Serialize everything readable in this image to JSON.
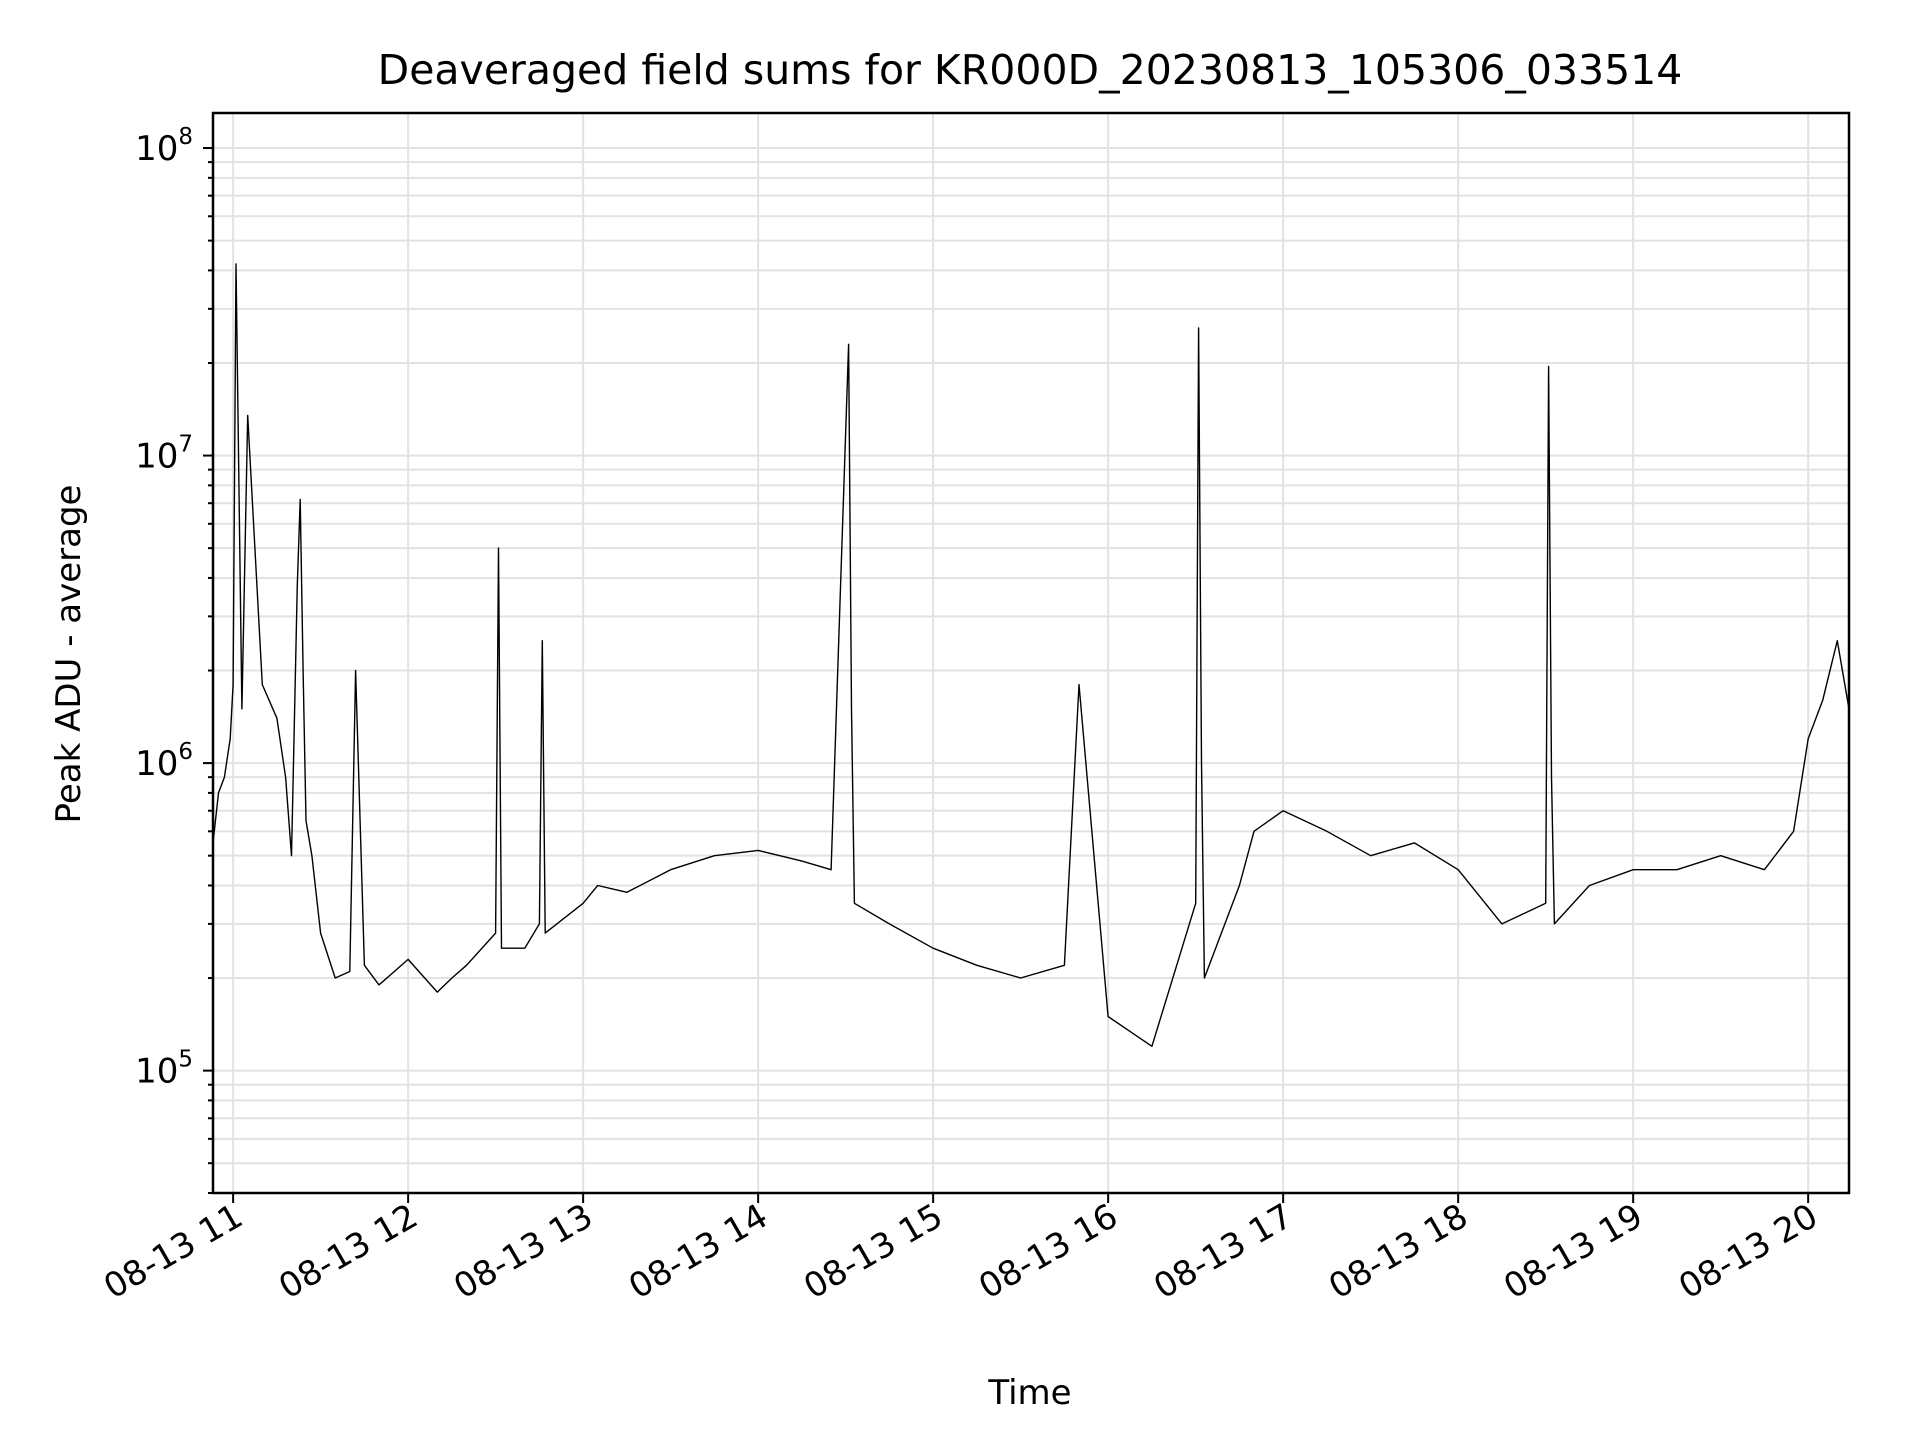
{
  "chart_data": {
    "type": "line",
    "title": "Deaveraged field sums for KR000D_20230813_105306_033514",
    "xlabel": "Time",
    "ylabel": "Peak ADU - average",
    "yscale": "log",
    "ylim": [
      40000,
      130000000
    ],
    "xlim": [
      "2023-08-13 10:53:06",
      "2023-08-13 20:14:00"
    ],
    "grid": true,
    "line_color": "#000000",
    "x_ticks": [
      "2023-08-13 11:00",
      "2023-08-13 12:00",
      "2023-08-13 13:00",
      "2023-08-13 14:00",
      "2023-08-13 15:00",
      "2023-08-13 16:00",
      "2023-08-13 17:00",
      "2023-08-13 18:00",
      "2023-08-13 19:00",
      "2023-08-13 20:00"
    ],
    "x_tick_labels": [
      "08-13 11",
      "08-13 12",
      "08-13 13",
      "08-13 14",
      "08-13 15",
      "08-13 16",
      "08-13 17",
      "08-13 18",
      "08-13 19",
      "08-13 20"
    ],
    "y_ticks": [
      {
        "value": 100000,
        "base": "10",
        "exp": "5"
      },
      {
        "value": 1000000,
        "base": "10",
        "exp": "6"
      },
      {
        "value": 10000000,
        "base": "10",
        "exp": "7"
      },
      {
        "value": 100000000,
        "base": "10",
        "exp": "8"
      }
    ],
    "series": [
      {
        "x": [
          "2023-08-13 10:53:06",
          "2023-08-13 10:55",
          "2023-08-13 10:57",
          "2023-08-13 10:59",
          "2023-08-13 11:00",
          "2023-08-13 11:01",
          "2023-08-13 11:03",
          "2023-08-13 11:05",
          "2023-08-13 11:10",
          "2023-08-13 11:15",
          "2023-08-13 11:18",
          "2023-08-13 11:20",
          "2023-08-13 11:22",
          "2023-08-13 11:23",
          "2023-08-13 11:24",
          "2023-08-13 11:25",
          "2023-08-13 11:27",
          "2023-08-13 11:30",
          "2023-08-13 11:35",
          "2023-08-13 11:40",
          "2023-08-13 11:42",
          "2023-08-13 11:45",
          "2023-08-13 11:50",
          "2023-08-13 12:00",
          "2023-08-13 12:10",
          "2023-08-13 12:15",
          "2023-08-13 12:20",
          "2023-08-13 12:30",
          "2023-08-13 12:31",
          "2023-08-13 12:32",
          "2023-08-13 12:40",
          "2023-08-13 12:45",
          "2023-08-13 12:46",
          "2023-08-13 12:47",
          "2023-08-13 13:00",
          "2023-08-13 13:05",
          "2023-08-13 13:15",
          "2023-08-13 13:30",
          "2023-08-13 13:45",
          "2023-08-13 14:00",
          "2023-08-13 14:15",
          "2023-08-13 14:25",
          "2023-08-13 14:31",
          "2023-08-13 14:32",
          "2023-08-13 14:33",
          "2023-08-13 14:45",
          "2023-08-13 15:00",
          "2023-08-13 15:15",
          "2023-08-13 15:30",
          "2023-08-13 15:45",
          "2023-08-13 15:50",
          "2023-08-13 16:00",
          "2023-08-13 16:15",
          "2023-08-13 16:30",
          "2023-08-13 16:31",
          "2023-08-13 16:32",
          "2023-08-13 16:33",
          "2023-08-13 16:45",
          "2023-08-13 16:50",
          "2023-08-13 17:00",
          "2023-08-13 17:15",
          "2023-08-13 17:30",
          "2023-08-13 17:45",
          "2023-08-13 18:00",
          "2023-08-13 18:15",
          "2023-08-13 18:30",
          "2023-08-13 18:31",
          "2023-08-13 18:32",
          "2023-08-13 18:33",
          "2023-08-13 18:45",
          "2023-08-13 19:00",
          "2023-08-13 19:15",
          "2023-08-13 19:30",
          "2023-08-13 19:45",
          "2023-08-13 19:55",
          "2023-08-13 20:00",
          "2023-08-13 20:05",
          "2023-08-13 20:10",
          "2023-08-13 20:14"
        ],
        "y": [
          550000,
          800000,
          900000,
          1200000,
          1800000,
          42000000,
          1500000,
          13500000,
          1800000,
          1400000,
          900000,
          500000,
          3800000,
          7200000,
          2000000,
          650000,
          500000,
          280000,
          200000,
          210000,
          2000000,
          220000,
          190000,
          230000,
          180000,
          200000,
          220000,
          280000,
          5000000,
          250000,
          250000,
          300000,
          2500000,
          280000,
          350000,
          400000,
          380000,
          450000,
          500000,
          520000,
          480000,
          450000,
          23000000,
          1500000,
          350000,
          300000,
          250000,
          220000,
          200000,
          220000,
          1800000,
          150000,
          120000,
          350000,
          26000000,
          1000000,
          200000,
          400000,
          600000,
          700000,
          600000,
          500000,
          550000,
          450000,
          300000,
          350000,
          19500000,
          900000,
          300000,
          400000,
          450000,
          450000,
          500000,
          450000,
          600000,
          1200000,
          1600000,
          2500000,
          1500000
        ]
      }
    ]
  }
}
